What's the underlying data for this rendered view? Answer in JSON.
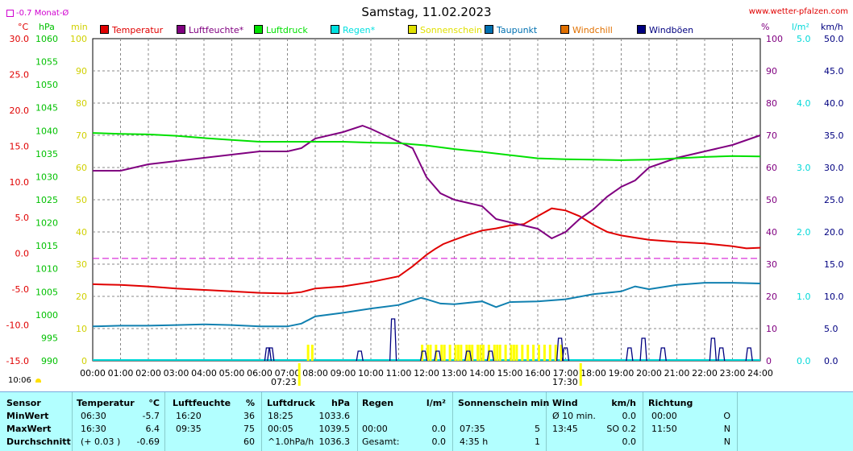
{
  "header": {
    "date": "Samstag, 11.02.2023",
    "site": "www.wetter-pfalzen.com",
    "monthavg": "-0.7 Monat-Ø",
    "clock": "10:06",
    "sunrise": "07:23",
    "sunset": "17:30"
  },
  "legend": [
    {
      "name": "Temperatur",
      "color": "#e00000"
    },
    {
      "name": "Luftfeuchte*",
      "color": "#800080"
    },
    {
      "name": "Luftdruck",
      "color": "#00e000"
    },
    {
      "name": "Regen*",
      "color": "#00e0e0"
    },
    {
      "name": "Sonnenschein",
      "color": "#e0e000"
    },
    {
      "name": "Taupunkt",
      "color": "#0070b0"
    },
    {
      "name": "Windchill",
      "color": "#e07000"
    },
    {
      "name": "Windböen",
      "color": "#000080"
    }
  ],
  "colors": {
    "temp": "#e00000",
    "hum": "#800080",
    "press": "#00e000",
    "rain": "#00d8d8",
    "sun": "#ffff00",
    "dew": "#1080b0",
    "gust": "#000080",
    "monthavg": "#d000d0",
    "grid": "#888888"
  },
  "axes": {
    "temp_unit": "°C",
    "press_unit": "hPa",
    "sun_unit": "min",
    "hum_unit": "%",
    "rain_unit": "l/m²",
    "wind_unit": "km/h",
    "temp_ticks": [
      "30.0",
      "25.0",
      "20.0",
      "15.0",
      "10.0",
      "5.0",
      "0.0",
      "-5.0",
      "-10.0",
      "-15.0"
    ],
    "press_ticks": [
      "1060",
      "1055",
      "1050",
      "1045",
      "1040",
      "1035",
      "1030",
      "1025",
      "1020",
      "1015",
      "1010",
      "1005",
      "1000",
      "995",
      "990"
    ],
    "sun_ticks": [
      "100",
      "90",
      "80",
      "70",
      "60",
      "50",
      "40",
      "30",
      "20",
      "10",
      "0"
    ],
    "hum_ticks": [
      "100",
      "90",
      "80",
      "70",
      "60",
      "50",
      "40",
      "30",
      "20",
      "10",
      "0"
    ],
    "rain_ticks": [
      "5.0",
      "4.0",
      "3.0",
      "2.0",
      "1.0",
      "0.0"
    ],
    "wind_ticks": [
      "50.0",
      "45.0",
      "40.0",
      "35.0",
      "30.0",
      "25.0",
      "20.0",
      "15.0",
      "10.0",
      "5.0",
      "0.0"
    ],
    "x_ticks": [
      "00:00",
      "01:00",
      "02:00",
      "03:00",
      "04:00",
      "05:00",
      "06:00",
      "07:00",
      "08:00",
      "09:00",
      "10:00",
      "11:00",
      "12:00",
      "13:00",
      "14:00",
      "15:00",
      "16:00",
      "17:00",
      "18:00",
      "19:00",
      "20:00",
      "21:00",
      "22:00",
      "23:00",
      "24:00"
    ]
  },
  "chart_data": {
    "type": "line",
    "x_unit": "hour",
    "temp_range": [
      -15,
      30
    ],
    "press_range": [
      990,
      1060
    ],
    "hum_range": [
      0,
      100
    ],
    "wind_range": [
      0,
      50
    ],
    "month_avg_temp": -0.7,
    "series": [
      {
        "name": "Temperatur",
        "axis": "temp",
        "points": [
          [
            0,
            -4.3
          ],
          [
            1,
            -4.4
          ],
          [
            2,
            -4.6
          ],
          [
            3,
            -4.9
          ],
          [
            4,
            -5.1
          ],
          [
            5,
            -5.3
          ],
          [
            6,
            -5.5
          ],
          [
            7,
            -5.6
          ],
          [
            7.5,
            -5.4
          ],
          [
            8,
            -4.9
          ],
          [
            9,
            -4.6
          ],
          [
            10,
            -4.0
          ],
          [
            11,
            -3.2
          ],
          [
            11.5,
            -1.8
          ],
          [
            12,
            -0.2
          ],
          [
            12.3,
            0.6
          ],
          [
            12.6,
            1.3
          ],
          [
            13,
            1.9
          ],
          [
            13.5,
            2.6
          ],
          [
            14,
            3.2
          ],
          [
            14.5,
            3.5
          ],
          [
            15,
            3.9
          ],
          [
            15.5,
            4.1
          ],
          [
            16,
            5.2
          ],
          [
            16.5,
            6.3
          ],
          [
            17,
            6.0
          ],
          [
            17.5,
            5.2
          ],
          [
            18,
            4.0
          ],
          [
            18.5,
            3.0
          ],
          [
            19,
            2.5
          ],
          [
            19.5,
            2.2
          ],
          [
            20,
            1.9
          ],
          [
            21,
            1.6
          ],
          [
            22,
            1.4
          ],
          [
            23,
            1.0
          ],
          [
            23.5,
            0.7
          ],
          [
            24,
            0.8
          ]
        ]
      },
      {
        "name": "Luftfeuchte*",
        "axis": "hum",
        "points": [
          [
            0,
            59
          ],
          [
            1,
            59
          ],
          [
            2,
            61
          ],
          [
            3,
            62
          ],
          [
            4,
            63
          ],
          [
            5,
            64
          ],
          [
            6,
            65
          ],
          [
            7,
            65
          ],
          [
            7.5,
            66
          ],
          [
            8,
            69
          ],
          [
            9,
            71
          ],
          [
            9.7,
            73
          ],
          [
            10,
            72
          ],
          [
            11,
            68
          ],
          [
            11.5,
            66
          ],
          [
            12,
            57
          ],
          [
            12.5,
            52
          ],
          [
            13,
            50
          ],
          [
            14,
            48
          ],
          [
            14.5,
            44
          ],
          [
            15,
            43
          ],
          [
            15.5,
            42
          ],
          [
            16,
            41
          ],
          [
            16.5,
            38
          ],
          [
            17,
            40
          ],
          [
            17.5,
            44
          ],
          [
            18,
            47
          ],
          [
            18.5,
            51
          ],
          [
            19,
            54
          ],
          [
            19.5,
            56
          ],
          [
            20,
            60
          ],
          [
            21,
            63
          ],
          [
            22,
            65
          ],
          [
            23,
            67
          ],
          [
            24,
            70
          ]
        ]
      },
      {
        "name": "Luftdruck",
        "axis": "press",
        "points": [
          [
            0,
            1039.5
          ],
          [
            1,
            1039.3
          ],
          [
            2,
            1039.2
          ],
          [
            3,
            1038.9
          ],
          [
            4,
            1038.4
          ],
          [
            5,
            1038.0
          ],
          [
            6,
            1037.6
          ],
          [
            7,
            1037.6
          ],
          [
            8,
            1037.6
          ],
          [
            9,
            1037.6
          ],
          [
            10,
            1037.4
          ],
          [
            11,
            1037.3
          ],
          [
            12,
            1036.8
          ],
          [
            13,
            1036.0
          ],
          [
            14,
            1035.4
          ],
          [
            15,
            1034.7
          ],
          [
            16,
            1034.0
          ],
          [
            17,
            1033.8
          ],
          [
            18,
            1033.7
          ],
          [
            19,
            1033.6
          ],
          [
            20,
            1033.7
          ],
          [
            21,
            1034.0
          ],
          [
            22,
            1034.3
          ],
          [
            23,
            1034.5
          ],
          [
            24,
            1034.4
          ]
        ]
      },
      {
        "name": "Taupunkt",
        "axis": "temp",
        "points": [
          [
            0,
            -10.2
          ],
          [
            1,
            -10.1
          ],
          [
            2,
            -10.1
          ],
          [
            3,
            -10.0
          ],
          [
            4,
            -9.9
          ],
          [
            5,
            -10.0
          ],
          [
            6,
            -10.2
          ],
          [
            7,
            -10.2
          ],
          [
            7.5,
            -9.8
          ],
          [
            8,
            -8.8
          ],
          [
            9,
            -8.3
          ],
          [
            10,
            -7.7
          ],
          [
            11,
            -7.2
          ],
          [
            11.8,
            -6.2
          ],
          [
            12,
            -6.4
          ],
          [
            12.5,
            -7.0
          ],
          [
            13,
            -7.1
          ],
          [
            14,
            -6.7
          ],
          [
            14.5,
            -7.5
          ],
          [
            15,
            -6.8
          ],
          [
            16,
            -6.7
          ],
          [
            17,
            -6.4
          ],
          [
            18,
            -5.7
          ],
          [
            19,
            -5.3
          ],
          [
            19.5,
            -4.6
          ],
          [
            20,
            -5.0
          ],
          [
            21,
            -4.4
          ],
          [
            22,
            -4.1
          ],
          [
            23,
            -4.1
          ],
          [
            24,
            -4.2
          ]
        ]
      }
    ],
    "sunshine_bars": [
      [
        11.8,
        5
      ],
      [
        12.0,
        5
      ],
      [
        12.1,
        5
      ],
      [
        12.3,
        5
      ],
      [
        12.5,
        5
      ],
      [
        12.6,
        5
      ],
      [
        12.8,
        5
      ],
      [
        13.0,
        5
      ],
      [
        13.1,
        5
      ],
      [
        13.2,
        5
      ],
      [
        13.4,
        5
      ],
      [
        13.5,
        5
      ],
      [
        13.6,
        5
      ],
      [
        13.8,
        5
      ],
      [
        13.9,
        5
      ],
      [
        14.0,
        5
      ],
      [
        14.2,
        5
      ],
      [
        14.4,
        5
      ],
      [
        14.5,
        5
      ],
      [
        14.6,
        5
      ],
      [
        14.8,
        5
      ],
      [
        15.0,
        5
      ],
      [
        15.1,
        5
      ],
      [
        15.2,
        5
      ],
      [
        15.4,
        5
      ],
      [
        15.6,
        5
      ],
      [
        15.8,
        5
      ],
      [
        16.0,
        5
      ],
      [
        16.2,
        5
      ],
      [
        16.4,
        5
      ],
      [
        16.6,
        5
      ],
      [
        16.8,
        5
      ],
      [
        7.7,
        5
      ],
      [
        7.85,
        5
      ]
    ],
    "gust_spikes": [
      [
        6.3,
        2
      ],
      [
        6.4,
        2
      ],
      [
        9.6,
        1.5
      ],
      [
        10.8,
        6.5
      ],
      [
        11.9,
        1.5
      ],
      [
        12.4,
        1.5
      ],
      [
        13.5,
        1.5
      ],
      [
        14.3,
        1.5
      ],
      [
        16.8,
        3.5
      ],
      [
        17.0,
        2
      ],
      [
        19.3,
        2
      ],
      [
        19.8,
        3.5
      ],
      [
        20.5,
        2
      ],
      [
        22.3,
        3.5
      ],
      [
        22.6,
        2
      ],
      [
        23.6,
        2
      ]
    ]
  },
  "stats": {
    "headers": {
      "sensor": "Sensor",
      "temp": "Temperatur",
      "temp_u": "°C",
      "hum": "Luftfeuchte",
      "hum_u": "%",
      "press": "Luftdruck",
      "press_u": "hPa",
      "rain": "Regen",
      "rain_u": "l/m²",
      "sun": "Sonnenschein min",
      "wind": "Wind",
      "wind_u": "km/h",
      "dir": "Richtung"
    },
    "rows": [
      {
        "label": "MinWert",
        "temp_time": "06:30",
        "temp_val": "-5.7",
        "hum_time": "16:20",
        "hum_val": "36",
        "press_time": "18:25",
        "press_val": "1033.6",
        "rain_time": "",
        "rain_val": "",
        "sun_time": "",
        "sun_val": "",
        "wind_label": "Ø 10 min.",
        "wind_val": "0.0",
        "dir_time": "00:00",
        "dir_val": "O"
      },
      {
        "label": "MaxWert",
        "temp_time": "16:30",
        "temp_val": "6.4",
        "hum_time": "09:35",
        "hum_val": "75",
        "press_time": "00:05",
        "press_val": "1039.5",
        "rain_time": "00:00",
        "rain_val": "0.0",
        "sun_time": "07:35",
        "sun_val": "5",
        "wind_label": "13:45",
        "wind_val": "SO 0.2",
        "dir_time": "11:50",
        "dir_val": "N"
      },
      {
        "label": "Durchschnitt",
        "temp_time": "(+ 0.03 )",
        "temp_val": "-0.69",
        "hum_time": "",
        "hum_val": "60",
        "press_time": "^1.0hPa/h",
        "press_val": "1036.3",
        "rain_time": "Gesamt:",
        "rain_val": "0.0",
        "sun_time": "4:35 h",
        "sun_val": "1",
        "wind_label": "",
        "wind_val": "0.0",
        "dir_time": "",
        "dir_val": "N"
      }
    ]
  }
}
